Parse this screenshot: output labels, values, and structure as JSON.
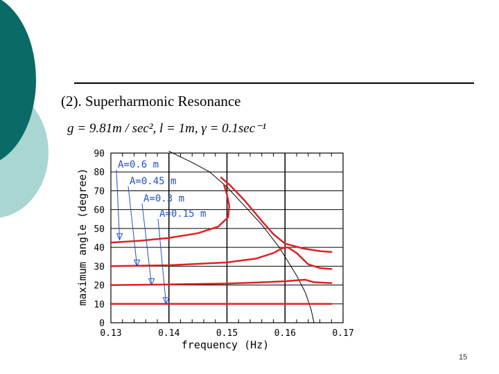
{
  "slide": {
    "title": "(2). Superharmonic Resonance",
    "formula": "g = 9.81m / sec², l = 1m, γ = 0.1sec⁻¹",
    "page_number": "15"
  },
  "colors": {
    "teal_dark": "#0a6a66",
    "teal_light": "#a9d6d3",
    "red_curve": "#e02020",
    "annotation_blue": "#2050c8"
  },
  "chart_data": {
    "type": "line",
    "xlabel": "frequency (Hz)",
    "ylabel": "maximum angle (degree)",
    "xlim": [
      0.13,
      0.17
    ],
    "ylim": [
      0,
      90
    ],
    "xticks": [
      "0.13",
      "0.14",
      "0.15",
      "0.16",
      "0.17"
    ],
    "yticks": [
      "0",
      "10",
      "20",
      "30",
      "40",
      "50",
      "60",
      "70",
      "80",
      "90"
    ],
    "grid": true,
    "annotations": [
      {
        "text": "A=0.6 m",
        "points_to": [
          0.1315,
          44
        ]
      },
      {
        "text": "A=0.45 m",
        "points_to": [
          0.1345,
          30
        ]
      },
      {
        "text": "A=0.3 m",
        "points_to": [
          0.137,
          20
        ]
      },
      {
        "text": "A=0.15 m",
        "points_to": [
          0.1395,
          10
        ]
      }
    ],
    "series": [
      {
        "color": "#000000",
        "width": 1,
        "x": [
          0.14,
          0.144,
          0.147,
          0.15,
          0.153,
          0.156,
          0.159,
          0.162,
          0.1635,
          0.1645,
          0.165
        ],
        "y": [
          91,
          85,
          80,
          72,
          62,
          52,
          40,
          25,
          16,
          7,
          0
        ]
      },
      {
        "color": "#e02020",
        "width": 2.5,
        "x": [
          0.13,
          0.135,
          0.14,
          0.145,
          0.1485,
          0.1502,
          0.1504,
          0.15,
          0.1495
        ],
        "y": [
          42.5,
          43.5,
          45,
          47.5,
          51,
          56,
          62,
          68,
          73
        ]
      },
      {
        "color": "#e02020",
        "width": 2.5,
        "x": [
          0.149,
          0.1505,
          0.153,
          0.156,
          0.158,
          0.16,
          0.163,
          0.166,
          0.168
        ],
        "y": [
          77,
          73,
          65,
          54,
          47,
          42,
          39.5,
          38,
          37.5
        ]
      },
      {
        "color": "#e02020",
        "width": 2.5,
        "x": [
          0.13,
          0.14,
          0.15,
          0.155,
          0.158,
          0.1595,
          0.1605,
          0.162,
          0.164,
          0.166,
          0.168
        ],
        "y": [
          30,
          30.5,
          32,
          34,
          37,
          39.5,
          40,
          37,
          31,
          29,
          28.5
        ]
      },
      {
        "color": "#e02020",
        "width": 2.5,
        "x": [
          0.13,
          0.14,
          0.15,
          0.155,
          0.16,
          0.162,
          0.1635,
          0.165,
          0.168
        ],
        "y": [
          20,
          20.3,
          20.8,
          21.3,
          22,
          22.5,
          22.8,
          21.5,
          21
        ]
      },
      {
        "color": "#e02020",
        "width": 2.5,
        "x": [
          0.13,
          0.14,
          0.15,
          0.16,
          0.168
        ],
        "y": [
          10,
          10,
          10,
          10,
          10
        ]
      }
    ]
  }
}
